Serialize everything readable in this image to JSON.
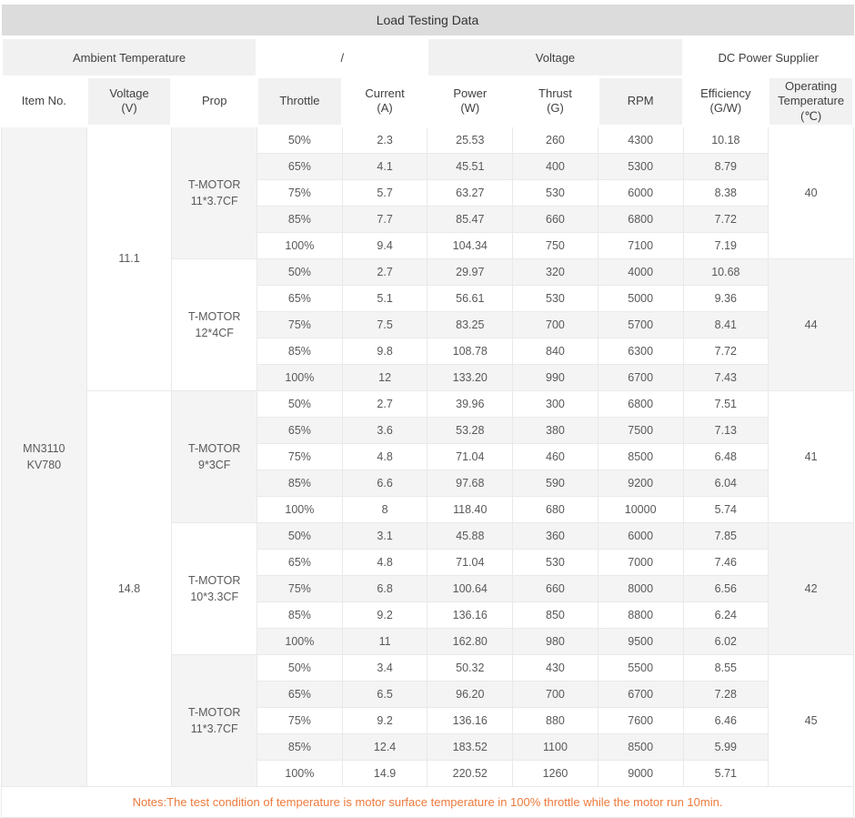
{
  "title": "Load Testing Data",
  "notes": "Notes:The test condition of temperature is motor surface temperature in 100% throttle while the motor run 10min.",
  "colors": {
    "title_bg": "#dcdcdc",
    "header_shade": "#f1f1f1",
    "row_stripe": "#f4f4f4",
    "border": "#e9e9e9",
    "notes_text": "#ed7a3c",
    "muted_text": "#b3b3b3",
    "data_text": "#595959"
  },
  "table": {
    "item": "MN3110\nKV780",
    "groups": [
      {
        "label": "Ambient Temperature",
        "span": 3,
        "shaded": true,
        "muted": false
      },
      {
        "label": "/",
        "span": 2,
        "shaded": false,
        "muted": false
      },
      {
        "label": "Voltage",
        "span": 3,
        "shaded": true,
        "muted": false
      },
      {
        "label": "DC Power Supplier",
        "span": 2,
        "shaded": false,
        "muted": true
      }
    ],
    "columns": [
      {
        "label": "Item No.",
        "shaded": false
      },
      {
        "label": "Voltage\n(V)",
        "shaded": true
      },
      {
        "label": "Prop",
        "shaded": false
      },
      {
        "label": "Throttle",
        "shaded": true
      },
      {
        "label": "Current\n(A)",
        "shaded": false
      },
      {
        "label": "Power\n(W)",
        "shaded": false
      },
      {
        "label": "Thrust\n(G)",
        "shaded": false
      },
      {
        "label": "RPM",
        "shaded": true
      },
      {
        "label": "Efficiency\n(G/W)",
        "shaded": false
      },
      {
        "label": "Operating\nTemperature\n(℃)",
        "shaded": true
      }
    ],
    "blocks": [
      {
        "voltage": "11.1",
        "voltage_span": 10,
        "prop": "T-MOTOR\n11*3.7CF",
        "prop_shaded": true,
        "temp": "40",
        "temp_shaded": false,
        "rows": [
          [
            "50%",
            "2.3",
            "25.53",
            "260",
            "4300",
            "10.18"
          ],
          [
            "65%",
            "4.1",
            "45.51",
            "400",
            "5300",
            "8.79"
          ],
          [
            "75%",
            "5.7",
            "63.27",
            "530",
            "6000",
            "8.38"
          ],
          [
            "85%",
            "7.7",
            "85.47",
            "660",
            "6800",
            "7.72"
          ],
          [
            "100%",
            "9.4",
            "104.34",
            "750",
            "7100",
            "7.19"
          ]
        ]
      },
      {
        "prop": "T-MOTOR\n12*4CF",
        "prop_shaded": false,
        "temp": "44",
        "temp_shaded": true,
        "rows": [
          [
            "50%",
            "2.7",
            "29.97",
            "320",
            "4000",
            "10.68"
          ],
          [
            "65%",
            "5.1",
            "56.61",
            "530",
            "5000",
            "9.36"
          ],
          [
            "75%",
            "7.5",
            "83.25",
            "700",
            "5700",
            "8.41"
          ],
          [
            "85%",
            "9.8",
            "108.78",
            "840",
            "6300",
            "7.72"
          ],
          [
            "100%",
            "12",
            "133.20",
            "990",
            "6700",
            "7.43"
          ]
        ]
      },
      {
        "voltage": "14.8",
        "voltage_span": 15,
        "prop": "T-MOTOR\n9*3CF",
        "prop_shaded": true,
        "temp": "41",
        "temp_shaded": false,
        "rows": [
          [
            "50%",
            "2.7",
            "39.96",
            "300",
            "6800",
            "7.51"
          ],
          [
            "65%",
            "3.6",
            "53.28",
            "380",
            "7500",
            "7.13"
          ],
          [
            "75%",
            "4.8",
            "71.04",
            "460",
            "8500",
            "6.48"
          ],
          [
            "85%",
            "6.6",
            "97.68",
            "590",
            "9200",
            "6.04"
          ],
          [
            "100%",
            "8",
            "118.40",
            "680",
            "10000",
            "5.74"
          ]
        ]
      },
      {
        "prop": "T-MOTOR\n10*3.3CF",
        "prop_shaded": false,
        "temp": "42",
        "temp_shaded": true,
        "rows": [
          [
            "50%",
            "3.1",
            "45.88",
            "360",
            "6000",
            "7.85"
          ],
          [
            "65%",
            "4.8",
            "71.04",
            "530",
            "7000",
            "7.46"
          ],
          [
            "75%",
            "6.8",
            "100.64",
            "660",
            "8000",
            "6.56"
          ],
          [
            "85%",
            "9.2",
            "136.16",
            "850",
            "8800",
            "6.24"
          ],
          [
            "100%",
            "11",
            "162.80",
            "980",
            "9500",
            "6.02"
          ]
        ]
      },
      {
        "prop": "T-MOTOR\n11*3.7CF",
        "prop_shaded": true,
        "temp": "45",
        "temp_shaded": false,
        "rows": [
          [
            "50%",
            "3.4",
            "50.32",
            "430",
            "5500",
            "8.55"
          ],
          [
            "65%",
            "6.5",
            "96.20",
            "700",
            "6700",
            "7.28"
          ],
          [
            "75%",
            "9.2",
            "136.16",
            "880",
            "7600",
            "6.46"
          ],
          [
            "85%",
            "12.4",
            "183.52",
            "1100",
            "8500",
            "5.99"
          ],
          [
            "100%",
            "14.9",
            "220.52",
            "1260",
            "9000",
            "5.71"
          ]
        ]
      }
    ]
  }
}
